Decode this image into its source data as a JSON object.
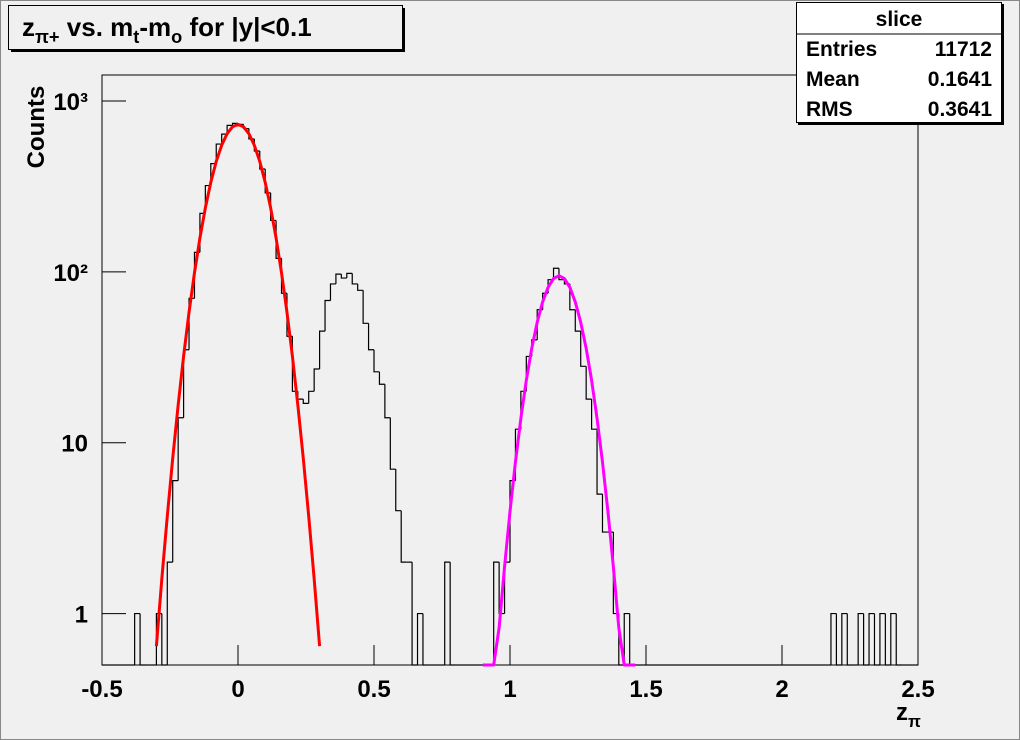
{
  "chart_data": {
    "type": "histogram",
    "title": [
      {
        "text": "z"
      },
      {
        "text": "π+",
        "sub": true
      },
      {
        "text": " vs. m"
      },
      {
        "text": "t",
        "sub": true
      },
      {
        "text": "-m"
      },
      {
        "text": "o",
        "sub": true
      },
      {
        "text": " for |y|<0.1"
      }
    ],
    "x_label": [
      {
        "text": "z"
      },
      {
        "text": "π",
        "sub": true
      }
    ],
    "y_label": "Counts",
    "bins": [
      -0.5,
      -0.48,
      -0.46,
      -0.44,
      -0.42,
      -0.4,
      -0.38,
      -0.36,
      -0.34,
      -0.32,
      -0.3,
      -0.28,
      -0.26,
      -0.24,
      -0.22,
      -0.2,
      -0.18,
      -0.16,
      -0.14,
      -0.12,
      -0.1,
      -0.08,
      -0.06,
      -0.04,
      -0.02,
      0,
      0.02,
      0.04,
      0.06,
      0.08,
      0.1,
      0.12,
      0.14,
      0.16,
      0.18,
      0.2,
      0.22,
      0.24,
      0.26,
      0.28,
      0.3,
      0.32,
      0.34,
      0.36,
      0.38,
      0.4,
      0.42,
      0.44,
      0.46,
      0.48,
      0.5,
      0.52,
      0.54,
      0.56,
      0.58,
      0.6,
      0.62,
      0.64,
      0.66,
      0.68,
      0.7,
      0.72,
      0.74,
      0.76,
      0.78,
      0.8,
      0.82,
      0.84,
      0.86,
      0.88,
      0.9,
      0.92,
      0.94,
      0.96,
      0.98,
      1,
      1.02,
      1.04,
      1.06,
      1.08,
      1.1,
      1.12,
      1.14,
      1.16,
      1.18,
      1.2,
      1.22,
      1.24,
      1.26,
      1.28,
      1.3,
      1.32,
      1.34,
      1.36,
      1.38,
      1.4,
      1.42,
      1.44,
      1.46,
      1.48,
      1.5,
      1.52,
      1.54,
      1.56,
      1.58,
      1.6,
      1.62,
      1.64,
      1.66,
      1.68,
      1.7,
      1.72,
      1.74,
      1.76,
      1.78,
      1.8,
      1.82,
      1.84,
      1.86,
      1.88,
      1.9,
      1.92,
      1.94,
      1.96,
      1.98,
      2,
      2.02,
      2.04,
      2.06,
      2.08,
      2.1,
      2.12,
      2.14,
      2.16,
      2.18,
      2.2,
      2.22,
      2.24,
      2.26,
      2.28,
      2.3,
      2.32,
      2.34,
      2.36,
      2.38,
      2.4,
      2.42,
      2.44,
      2.46,
      2.48,
      2.5
    ],
    "values": [
      0,
      0,
      0,
      0,
      0,
      0,
      1,
      0,
      0,
      0,
      1,
      0,
      2,
      6,
      14,
      35,
      70,
      130,
      220,
      320,
      430,
      560,
      640,
      720,
      740,
      730,
      690,
      600,
      510,
      400,
      290,
      200,
      120,
      75,
      42,
      20,
      18,
      17,
      20,
      27,
      45,
      68,
      85,
      97,
      92,
      98,
      85,
      78,
      50,
      35,
      26,
      22,
      14,
      7,
      4,
      2,
      2,
      0,
      1,
      0,
      0,
      0,
      0,
      2,
      0,
      0,
      0,
      0,
      0,
      0,
      0,
      0,
      2,
      1,
      2,
      6,
      12,
      20,
      32,
      40,
      60,
      75,
      90,
      105,
      90,
      85,
      60,
      45,
      28,
      18,
      12,
      5,
      3,
      3,
      1,
      0,
      1,
      0,
      0,
      0,
      0,
      0,
      0,
      0,
      0,
      0,
      0,
      0,
      0,
      0,
      0,
      0,
      0,
      0,
      0,
      0,
      0,
      0,
      0,
      0,
      0,
      0,
      0,
      0,
      0,
      0,
      0,
      0,
      0,
      0,
      0,
      0,
      0,
      0,
      1,
      0,
      1,
      0,
      0,
      1,
      0,
      1,
      0,
      1,
      0,
      1,
      0,
      0,
      0,
      0
    ],
    "color": "#000000",
    "fits": [
      {
        "color": "#ff0000",
        "x": [
          -0.3,
          -0.28,
          -0.26,
          -0.24,
          -0.22,
          -0.2,
          -0.18,
          -0.16,
          -0.14,
          -0.12,
          -0.1,
          -0.08,
          -0.06,
          -0.04,
          -0.02,
          0,
          0.02,
          0.04,
          0.06,
          0.08,
          0.1,
          0.12,
          0.14,
          0.16,
          0.18,
          0.2,
          0.22,
          0.24,
          0.26,
          0.28,
          0.3
        ],
        "values": [
          0.645,
          1.6,
          3.71,
          8.11,
          16.6,
          32.1,
          58.1,
          98.8,
          158,
          237,
          334,
          443,
          551,
          644,
          707.5,
          730,
          707.5,
          644,
          551,
          443,
          334,
          237,
          158,
          98.8,
          58.1,
          32.1,
          16.6,
          8.11,
          3.71,
          1.6,
          0.645
        ]
      },
      {
        "color": "#ff00ff",
        "x": [
          0.9,
          0.92,
          0.94,
          0.96,
          0.98,
          1,
          1.02,
          1.04,
          1.06,
          1.08,
          1.1,
          1.12,
          1.14,
          1.16,
          1.18,
          1.2,
          1.22,
          1.24,
          1.26,
          1.28,
          1.3,
          1.32,
          1.34,
          1.36,
          1.38,
          1.4,
          1.42,
          1.44,
          1.46
        ],
        "values": [
          0.0436,
          0.126,
          0.335,
          0.826,
          1.88,
          3.96,
          7.72,
          13.9,
          23.2,
          35.7,
          50.7,
          66.7,
          81.2,
          91.4,
          95,
          91.4,
          81.2,
          66.7,
          50.7,
          35.7,
          23.2,
          13.9,
          7.72,
          3.96,
          1.88,
          0.826,
          0.335,
          0.126,
          0.0436
        ]
      }
    ],
    "xlim": [
      -0.5,
      2.5
    ],
    "xticks": [
      -0.5,
      0,
      0.5,
      1,
      1.5,
      2,
      2.5
    ],
    "ylim": [
      0.5,
      1420
    ],
    "ylog": true,
    "yticks": [
      1,
      10,
      {
        "value": 100,
        "label": "10²"
      },
      {
        "value": 1000,
        "label": "10³"
      }
    ],
    "stats": {
      "title": "slice",
      "rows": [
        [
          "Entries",
          11712
        ],
        [
          "Mean",
          0.1641
        ],
        [
          "RMS",
          0.3641
        ]
      ]
    }
  }
}
